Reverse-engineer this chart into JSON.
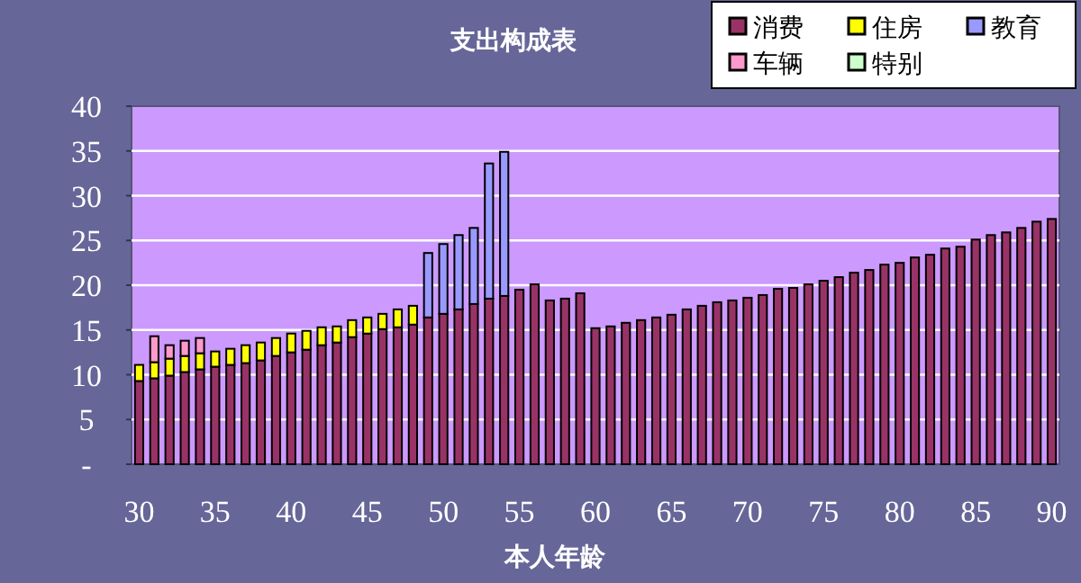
{
  "chart_data": {
    "type": "bar",
    "title": "支出构成表",
    "xlabel": "本人年龄",
    "categories": [
      "30",
      null,
      null,
      null,
      null,
      "35",
      null,
      null,
      null,
      null,
      "40",
      null,
      null,
      null,
      null,
      "45",
      null,
      null,
      null,
      null,
      "50",
      null,
      null,
      null,
      null,
      "55",
      null,
      null,
      null,
      null,
      "60",
      null,
      null,
      null,
      null,
      "65",
      null,
      null,
      null,
      null,
      "70",
      null,
      null,
      null,
      null,
      "75",
      null,
      null,
      null,
      null,
      "80",
      null,
      null,
      null,
      null,
      "85",
      null,
      null,
      null,
      null,
      "90"
    ],
    "stacked": true,
    "series": [
      {
        "name": "消费",
        "color": "#993366",
        "values": [
          9.3,
          9.6,
          9.9,
          10.3,
          10.6,
          10.9,
          11.1,
          11.3,
          11.6,
          12.1,
          12.5,
          12.8,
          13.3,
          13.6,
          14.2,
          14.6,
          15.1,
          15.3,
          15.6,
          16.4,
          16.8,
          17.3,
          17.9,
          18.5,
          18.8,
          19.5,
          20.1,
          18.3,
          18.5,
          19.1,
          15.2,
          15.4,
          15.8,
          16.1,
          16.4,
          16.7,
          17.3,
          17.7,
          18.1,
          18.3,
          18.6,
          18.9,
          19.6,
          19.7,
          20.1,
          20.5,
          20.9,
          21.4,
          21.7,
          22.3,
          22.5,
          23.1,
          23.4,
          24.1,
          24.3,
          25.1,
          25.6,
          25.9,
          26.4,
          27.1,
          27.4
        ]
      },
      {
        "name": "住房",
        "color": "#ffff00",
        "values": [
          1.8,
          1.8,
          1.9,
          1.8,
          1.8,
          1.7,
          1.8,
          2.0,
          2.0,
          2.0,
          2.1,
          2.1,
          2.0,
          1.8,
          1.9,
          1.8,
          1.7,
          2.0,
          2.1,
          null,
          null,
          null,
          null,
          null,
          null,
          null,
          null,
          null,
          null,
          null,
          null,
          null,
          null,
          null,
          null,
          null,
          null,
          null,
          null,
          null,
          null,
          null,
          null,
          null,
          null,
          null,
          null,
          null,
          null,
          null,
          null,
          null,
          null,
          null,
          null,
          null,
          null,
          null,
          null,
          null,
          null
        ]
      },
      {
        "name": "教育",
        "color": "#9999ff",
        "values": [
          null,
          null,
          null,
          null,
          null,
          null,
          null,
          null,
          null,
          null,
          null,
          null,
          null,
          null,
          null,
          null,
          null,
          null,
          null,
          7.2,
          7.8,
          8.3,
          8.5,
          15.1,
          16.1,
          null,
          null,
          null,
          null,
          null,
          null,
          null,
          null,
          null,
          null,
          null,
          null,
          null,
          null,
          null,
          null,
          null,
          null,
          null,
          null,
          null,
          null,
          null,
          null,
          null,
          null,
          null,
          null,
          null,
          null,
          null,
          null,
          null,
          null,
          null,
          null
        ]
      },
      {
        "name": "车辆",
        "color": "#ff99cc",
        "values": [
          null,
          2.9,
          1.5,
          1.7,
          1.7,
          null,
          null,
          null,
          null,
          null,
          null,
          null,
          null,
          null,
          null,
          null,
          null,
          null,
          null,
          null,
          null,
          null,
          null,
          null,
          null,
          null,
          null,
          null,
          null,
          null,
          null,
          null,
          null,
          null,
          null,
          null,
          null,
          null,
          null,
          null,
          null,
          null,
          null,
          null,
          null,
          null,
          null,
          null,
          null,
          null,
          null,
          null,
          null,
          null,
          null,
          null,
          null,
          null,
          null,
          null,
          null
        ]
      },
      {
        "name": "特别",
        "color": "#ccffcc",
        "values": [
          null,
          null,
          null,
          null,
          null,
          null,
          null,
          null,
          null,
          null,
          null,
          null,
          null,
          null,
          null,
          null,
          null,
          null,
          null,
          null,
          null,
          null,
          null,
          null,
          null,
          null,
          null,
          null,
          null,
          null,
          null,
          null,
          null,
          null,
          null,
          null,
          null,
          null,
          null,
          null,
          null,
          null,
          null,
          null,
          null,
          null,
          null,
          null,
          null,
          null,
          null,
          null,
          null,
          null,
          null,
          null,
          null,
          null,
          null,
          null,
          null
        ]
      }
    ],
    "ylim": [
      0,
      40
    ],
    "yticks": [
      {
        "value": 0,
        "label": "-"
      },
      5,
      10,
      15,
      20,
      25,
      30,
      35,
      40
    ],
    "grid": "y",
    "legend": "top right"
  }
}
